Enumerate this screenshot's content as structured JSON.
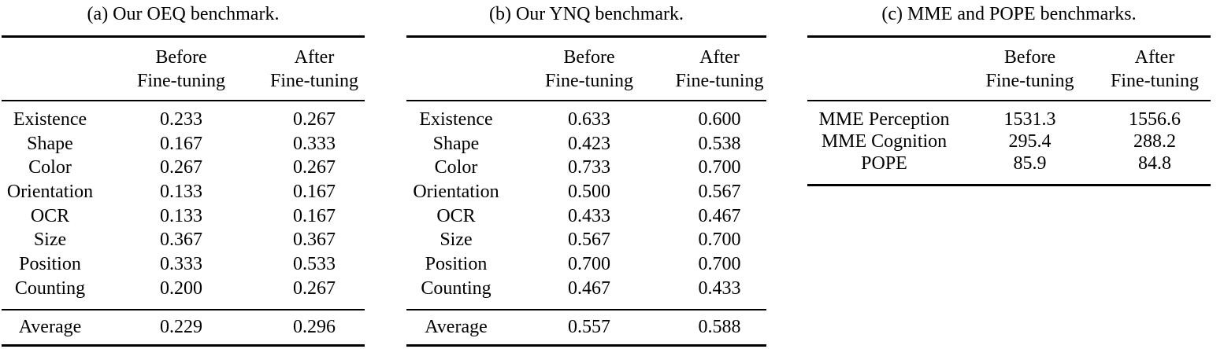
{
  "page": {
    "background": "#ffffff",
    "text_color": "#000000"
  },
  "tables": [
    {
      "caption": "(a) Our OEQ benchmark.",
      "headers": {
        "before": [
          "Before",
          "Fine-tuning"
        ],
        "after": [
          "After",
          "Fine-tuning"
        ]
      },
      "rows": [
        {
          "label": "Existence",
          "before": "0.233",
          "after": "0.267"
        },
        {
          "label": "Shape",
          "before": "0.167",
          "after": "0.333"
        },
        {
          "label": "Color",
          "before": "0.267",
          "after": "0.267"
        },
        {
          "label": "Orientation",
          "before": "0.133",
          "after": "0.167"
        },
        {
          "label": "OCR",
          "before": "0.133",
          "after": "0.167"
        },
        {
          "label": "Size",
          "before": "0.367",
          "after": "0.367"
        },
        {
          "label": "Position",
          "before": "0.333",
          "after": "0.533"
        },
        {
          "label": "Counting",
          "before": "0.200",
          "after": "0.267"
        }
      ],
      "average": {
        "label": "Average",
        "before": "0.229",
        "after": "0.296"
      }
    },
    {
      "caption": "(b) Our YNQ benchmark.",
      "headers": {
        "before": [
          "Before",
          "Fine-tuning"
        ],
        "after": [
          "After",
          "Fine-tuning"
        ]
      },
      "rows": [
        {
          "label": "Existence",
          "before": "0.633",
          "after": "0.600"
        },
        {
          "label": "Shape",
          "before": "0.423",
          "after": "0.538"
        },
        {
          "label": "Color",
          "before": "0.733",
          "after": "0.700"
        },
        {
          "label": "Orientation",
          "before": "0.500",
          "after": "0.567"
        },
        {
          "label": "OCR",
          "before": "0.433",
          "after": "0.467"
        },
        {
          "label": "Size",
          "before": "0.567",
          "after": "0.700"
        },
        {
          "label": "Position",
          "before": "0.700",
          "after": "0.700"
        },
        {
          "label": "Counting",
          "before": "0.467",
          "after": "0.433"
        }
      ],
      "average": {
        "label": "Average",
        "before": "0.557",
        "after": "0.588"
      }
    },
    {
      "caption": "(c) MME and POPE benchmarks.",
      "headers": {
        "before": [
          "Before",
          "Fine-tuning"
        ],
        "after": [
          "After",
          "Fine-tuning"
        ]
      },
      "rows": [
        {
          "label": "MME Perception",
          "before": "1531.3",
          "after": "1556.6"
        },
        {
          "label": "MME Cognition",
          "before": "295.4",
          "after": "288.2"
        },
        {
          "label": "POPE",
          "before": "85.9",
          "after": "84.8"
        }
      ]
    }
  ]
}
